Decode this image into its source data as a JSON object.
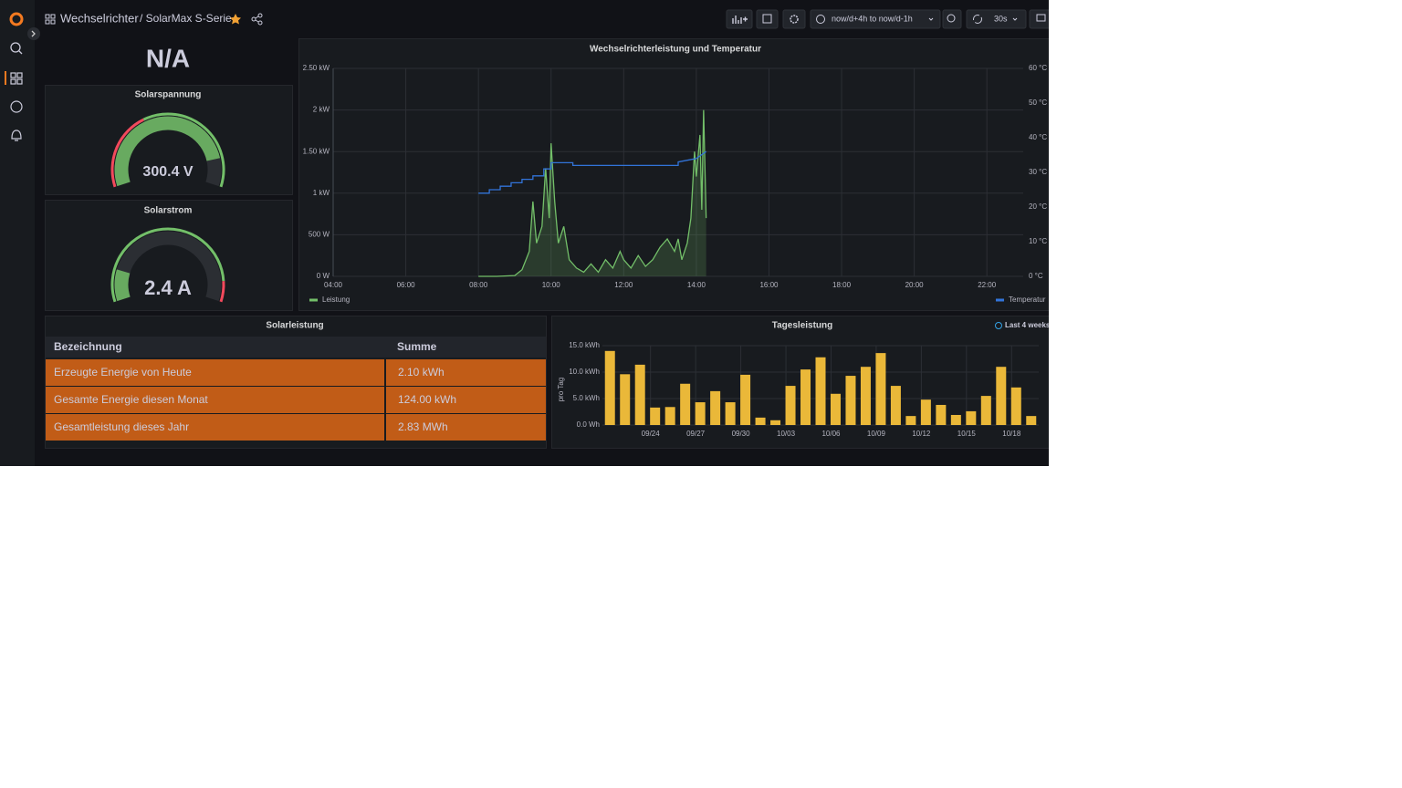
{
  "header": {
    "folder": "Wechselrichter",
    "dashboard": "/ SolarMax S-Serie",
    "time_range": "now/d+4h to now/d-1h",
    "refresh": "30s"
  },
  "stat": {
    "value": "N/A"
  },
  "gauges": [
    {
      "title": "Solarspannung",
      "value": 300.4,
      "value_label": "300.4 V",
      "range": [
        0,
        350
      ],
      "color": "#73bf69"
    },
    {
      "title": "Solarstrom",
      "value": 2.4,
      "value_label": "2.4 A",
      "range": [
        0,
        15
      ],
      "color": "#73bf69"
    }
  ],
  "power_chart": {
    "type": "line",
    "title": "Wechselrichterleistung und Temperatur",
    "xlim": [
      4,
      23
    ],
    "xticks": [
      {
        "value": 4,
        "label": "04:00"
      },
      {
        "value": 6,
        "label": "06:00"
      },
      {
        "value": 8,
        "label": "08:00"
      },
      {
        "value": 10,
        "label": "10:00"
      },
      {
        "value": 12,
        "label": "12:00"
      },
      {
        "value": 14,
        "label": "14:00"
      },
      {
        "value": 16,
        "label": "16:00"
      },
      {
        "value": 18,
        "label": "18:00"
      },
      {
        "value": 20,
        "label": "20:00"
      },
      {
        "value": 22,
        "label": "22:00"
      }
    ],
    "ylim": [
      0,
      2500
    ],
    "yticks": [
      {
        "value": 0,
        "label": "0 W"
      },
      {
        "value": 500,
        "label": "500 W"
      },
      {
        "value": 1000,
        "label": "1 kW"
      },
      {
        "value": 1500,
        "label": "1.50 kW"
      },
      {
        "value": 2000,
        "label": "2 kW"
      },
      {
        "value": 2500,
        "label": "2.50 kW"
      }
    ],
    "y2lim": [
      0,
      60
    ],
    "y2ticks": [
      {
        "value": 0,
        "label": "0 °C"
      },
      {
        "value": 10,
        "label": "10 °C"
      },
      {
        "value": 20,
        "label": "20 °C"
      },
      {
        "value": 30,
        "label": "30 °C"
      },
      {
        "value": 40,
        "label": "40 °C"
      },
      {
        "value": 50,
        "label": "50 °C"
      },
      {
        "value": 60,
        "label": "60 °C"
      }
    ],
    "grid": true,
    "series": [
      {
        "name": "Leistung",
        "color": "#73bf69",
        "fill": true,
        "x": [
          8.0,
          8.5,
          9.0,
          9.2,
          9.4,
          9.5,
          9.6,
          9.75,
          9.85,
          9.95,
          10.0,
          10.1,
          10.2,
          10.35,
          10.5,
          10.7,
          10.9,
          11.1,
          11.3,
          11.5,
          11.7,
          11.9,
          12.0,
          12.2,
          12.4,
          12.6,
          12.8,
          13.0,
          13.2,
          13.4,
          13.5,
          13.6,
          13.75,
          13.85,
          13.95,
          14.0,
          14.1,
          14.15,
          14.2,
          14.27
        ],
        "values": [
          0,
          0,
          10,
          80,
          300,
          900,
          400,
          600,
          1300,
          700,
          1600,
          900,
          400,
          600,
          200,
          100,
          50,
          150,
          50,
          200,
          100,
          300,
          200,
          100,
          250,
          120,
          200,
          350,
          450,
          300,
          450,
          200,
          400,
          700,
          1500,
          1200,
          1700,
          800,
          2000,
          700
        ]
      },
      {
        "name": "Temperatur",
        "color": "#3274d9",
        "axis": "y2",
        "x": [
          8.0,
          8.3,
          8.3,
          8.6,
          8.6,
          8.9,
          8.9,
          9.2,
          9.2,
          9.5,
          9.5,
          9.8,
          9.8,
          10.0,
          10.0,
          10.6,
          10.6,
          13.5,
          13.5,
          14.0,
          14.27
        ],
        "values": [
          24,
          24,
          25,
          25,
          26,
          26,
          27,
          27,
          28,
          28,
          29,
          29,
          31,
          31,
          32.8,
          32.8,
          32,
          32,
          33,
          34,
          36
        ]
      }
    ],
    "legend": "bottom"
  },
  "table": {
    "title": "Solarleistung",
    "columns": [
      "Bezeichnung",
      "Summe"
    ],
    "rows": [
      [
        "Erzeugte Energie von Heute",
        "2.10 kWh"
      ],
      [
        "Gesamte Energie diesen Monat",
        "124.00 kWh"
      ],
      [
        "Gesamtleistung dieses Jahr",
        "2.83 MWh"
      ]
    ]
  },
  "daily_chart": {
    "type": "bar",
    "title": "Tagesleistung",
    "time_badge": "Last 4 weeks",
    "y_label": "pro Tag",
    "color": "#eab839",
    "ylim": [
      0,
      15
    ],
    "yticks": [
      {
        "value": 0,
        "label": "0.0 Wh"
      },
      {
        "value": 5,
        "label": "5.0 kWh"
      },
      {
        "value": 10,
        "label": "10.0 kWh"
      },
      {
        "value": 15,
        "label": "15.0 kWh"
      }
    ],
    "grid": true,
    "categories": [
      null,
      null,
      null,
      "09/24",
      null,
      null,
      "09/27",
      null,
      null,
      "09/30",
      null,
      null,
      "10/03",
      null,
      null,
      "10/06",
      null,
      null,
      "10/09",
      null,
      null,
      "10/12",
      null,
      null,
      "10/15",
      null,
      null,
      "10/18",
      null
    ],
    "values": [
      14,
      9.6,
      11.4,
      3.3,
      3.4,
      7.8,
      4.3,
      6.4,
      4.3,
      9.5,
      1.4,
      0.9,
      7.4,
      10.5,
      12.8,
      5.9,
      9.3,
      11,
      13.6,
      7.4,
      1.7,
      4.8,
      3.8,
      1.9,
      2.6,
      5.5,
      11,
      7.1,
      1.7
    ]
  }
}
